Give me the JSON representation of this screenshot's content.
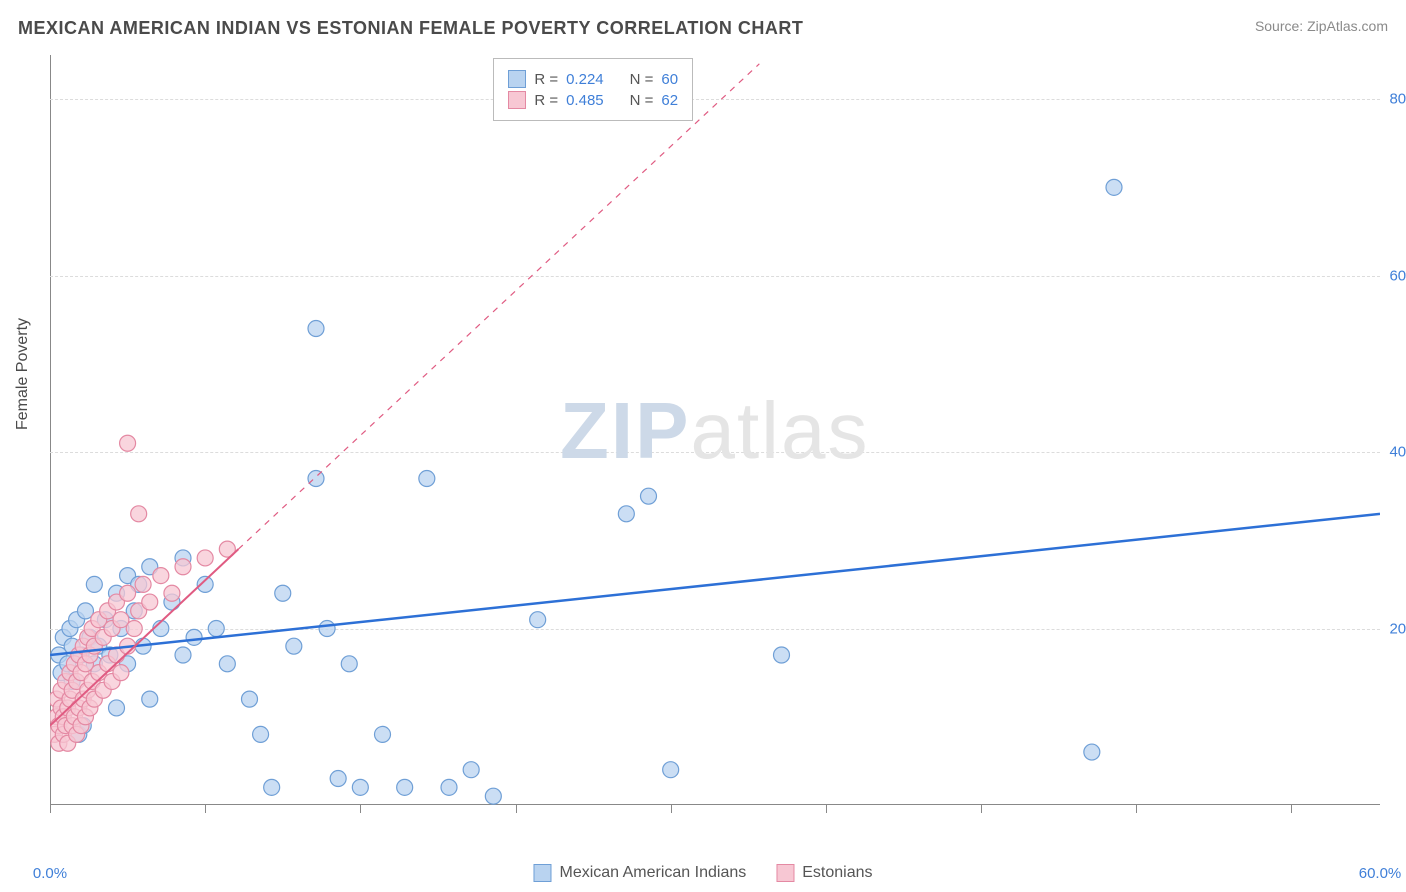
{
  "header": {
    "title": "MEXICAN AMERICAN INDIAN VS ESTONIAN FEMALE POVERTY CORRELATION CHART",
    "source": "Source: ZipAtlas.com"
  },
  "watermark": {
    "zip": "ZIP",
    "atlas": "atlas",
    "color_zip": "#cdd9e8",
    "color_atlas": "#e5e5e5"
  },
  "chart": {
    "type": "scatter",
    "background_color": "#ffffff",
    "grid_color": "#dcdcdc",
    "axis_color": "#888888",
    "y_axis_title": "Female Poverty",
    "xlim": [
      0,
      60
    ],
    "ylim": [
      0,
      85
    ],
    "x_ticks": [
      0,
      7,
      14,
      21,
      28,
      35,
      42,
      49,
      56
    ],
    "x_tick_labels": {
      "0": "0.0%",
      "60": "60.0%"
    },
    "y_gridlines": [
      20,
      40,
      60,
      80
    ],
    "y_tick_labels": {
      "20": "20.0%",
      "40": "40.0%",
      "60": "60.0%",
      "80": "80.0%"
    },
    "tick_label_color": "#3f7fd8",
    "axis_title_color": "#4a4a4a",
    "series": [
      {
        "name": "Mexican American Indians",
        "color_fill": "#b9d3f0",
        "color_stroke": "#6f9fd6",
        "marker_radius": 8,
        "R": "0.224",
        "N": "60",
        "trend": {
          "x1": 0,
          "y1": 17,
          "x2": 60,
          "y2": 33,
          "solid_until_x": 60,
          "color": "#2d70d6",
          "width": 2.5
        },
        "points": [
          [
            0.4,
            17
          ],
          [
            0.5,
            15
          ],
          [
            0.6,
            19
          ],
          [
            0.8,
            16
          ],
          [
            0.9,
            20
          ],
          [
            1.0,
            14
          ],
          [
            1.0,
            18
          ],
          [
            1.2,
            21
          ],
          [
            1.3,
            8
          ],
          [
            1.4,
            17
          ],
          [
            1.5,
            9
          ],
          [
            1.6,
            22
          ],
          [
            1.8,
            19
          ],
          [
            2.0,
            16
          ],
          [
            2.0,
            25
          ],
          [
            2.2,
            18
          ],
          [
            2.5,
            21
          ],
          [
            2.7,
            17
          ],
          [
            3.0,
            24
          ],
          [
            3.0,
            11
          ],
          [
            3.2,
            20
          ],
          [
            3.5,
            26
          ],
          [
            3.5,
            16
          ],
          [
            3.8,
            22
          ],
          [
            4.0,
            25
          ],
          [
            4.2,
            18
          ],
          [
            4.5,
            27
          ],
          [
            4.5,
            12
          ],
          [
            5.0,
            20
          ],
          [
            5.5,
            23
          ],
          [
            6.0,
            28
          ],
          [
            6.0,
            17
          ],
          [
            6.5,
            19
          ],
          [
            7.0,
            25
          ],
          [
            7.5,
            20
          ],
          [
            8.0,
            16
          ],
          [
            9.0,
            12
          ],
          [
            9.5,
            8
          ],
          [
            10.0,
            2
          ],
          [
            10.5,
            24
          ],
          [
            11.0,
            18
          ],
          [
            12.0,
            37
          ],
          [
            12.5,
            20
          ],
          [
            13.0,
            3
          ],
          [
            13.5,
            16
          ],
          [
            14.0,
            2
          ],
          [
            15.0,
            8
          ],
          [
            16.0,
            2
          ],
          [
            17.0,
            37
          ],
          [
            18.0,
            2
          ],
          [
            19.0,
            4
          ],
          [
            20.0,
            1
          ],
          [
            22.0,
            21
          ],
          [
            26.0,
            33
          ],
          [
            27.0,
            35
          ],
          [
            28.0,
            4
          ],
          [
            33.0,
            17
          ],
          [
            47.0,
            6
          ],
          [
            48.0,
            70
          ],
          [
            12.0,
            54
          ]
        ]
      },
      {
        "name": "Estonians",
        "color_fill": "#f7c7d3",
        "color_stroke": "#e489a3",
        "marker_radius": 8,
        "R": "0.485",
        "N": "62",
        "trend": {
          "x1": 0,
          "y1": 9,
          "x2": 8.5,
          "y2": 29,
          "dash_to_x": 32,
          "dash_to_y": 84,
          "color": "#e05b82",
          "width": 2
        },
        "points": [
          [
            0.2,
            8
          ],
          [
            0.3,
            10
          ],
          [
            0.3,
            12
          ],
          [
            0.4,
            7
          ],
          [
            0.4,
            9
          ],
          [
            0.5,
            11
          ],
          [
            0.5,
            13
          ],
          [
            0.6,
            8
          ],
          [
            0.6,
            10
          ],
          [
            0.7,
            9
          ],
          [
            0.7,
            14
          ],
          [
            0.8,
            11
          ],
          [
            0.8,
            7
          ],
          [
            0.9,
            12
          ],
          [
            0.9,
            15
          ],
          [
            1.0,
            9
          ],
          [
            1.0,
            13
          ],
          [
            1.1,
            10
          ],
          [
            1.1,
            16
          ],
          [
            1.2,
            8
          ],
          [
            1.2,
            14
          ],
          [
            1.3,
            11
          ],
          [
            1.3,
            17
          ],
          [
            1.4,
            9
          ],
          [
            1.4,
            15
          ],
          [
            1.5,
            12
          ],
          [
            1.5,
            18
          ],
          [
            1.6,
            10
          ],
          [
            1.6,
            16
          ],
          [
            1.7,
            13
          ],
          [
            1.7,
            19
          ],
          [
            1.8,
            11
          ],
          [
            1.8,
            17
          ],
          [
            1.9,
            14
          ],
          [
            1.9,
            20
          ],
          [
            2.0,
            12
          ],
          [
            2.0,
            18
          ],
          [
            2.2,
            15
          ],
          [
            2.2,
            21
          ],
          [
            2.4,
            13
          ],
          [
            2.4,
            19
          ],
          [
            2.6,
            16
          ],
          [
            2.6,
            22
          ],
          [
            2.8,
            14
          ],
          [
            2.8,
            20
          ],
          [
            3.0,
            17
          ],
          [
            3.0,
            23
          ],
          [
            3.2,
            15
          ],
          [
            3.2,
            21
          ],
          [
            3.5,
            18
          ],
          [
            3.5,
            24
          ],
          [
            3.8,
            20
          ],
          [
            4.0,
            22
          ],
          [
            4.0,
            33
          ],
          [
            4.2,
            25
          ],
          [
            4.5,
            23
          ],
          [
            5.0,
            26
          ],
          [
            5.5,
            24
          ],
          [
            6.0,
            27
          ],
          [
            3.5,
            41
          ],
          [
            7.0,
            28
          ],
          [
            8.0,
            29
          ]
        ]
      }
    ],
    "legend_bottom": [
      {
        "label": "Mexican American Indians",
        "fill": "#b9d3f0",
        "stroke": "#6f9fd6"
      },
      {
        "label": "Estonians",
        "fill": "#f7c7d3",
        "stroke": "#e489a3"
      }
    ],
    "stats_box": {
      "labels": {
        "R": "R =",
        "N": "N ="
      }
    }
  }
}
